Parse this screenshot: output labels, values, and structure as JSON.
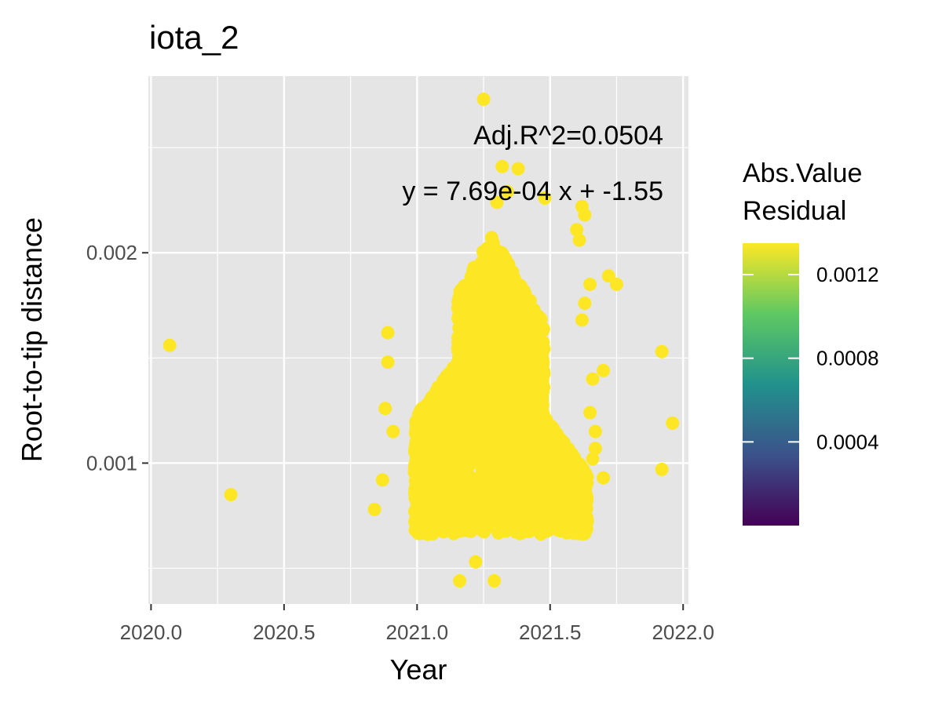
{
  "chart_data": {
    "type": "scatter",
    "title": "iota_2",
    "xlabel": "Year",
    "ylabel": "Root-to-tip distance",
    "xlim": [
      2019.99,
      2022.02
    ],
    "ylim": [
      0.00033,
      0.00284
    ],
    "x_ticks": [
      {
        "value": 2020.0,
        "label": "2020.0"
      },
      {
        "value": 2020.5,
        "label": "2020.5"
      },
      {
        "value": 2021.0,
        "label": "2021.0"
      },
      {
        "value": 2021.5,
        "label": "2021.5"
      },
      {
        "value": 2022.0,
        "label": "2022.0"
      }
    ],
    "y_ticks": [
      {
        "value": 0.001,
        "label": "0.001"
      },
      {
        "value": 0.002,
        "label": "0.002"
      }
    ],
    "grid": true,
    "annotations": {
      "r2": "Adj.R^2=0.0504",
      "equation": "y = 7.69e-04 x + -1.55"
    },
    "regression": {
      "slope": 0.000769,
      "intercept": -1.55
    },
    "legend": {
      "title_line1": "Abs.Value",
      "title_line2": "Residual",
      "position": "right",
      "range": [
        0,
        0.00135
      ],
      "ticks": [
        {
          "value": 0.0012,
          "label": "0.0012"
        },
        {
          "value": 0.0008,
          "label": "0.0008"
        },
        {
          "value": 0.0004,
          "label": "0.0004"
        }
      ],
      "palette": [
        "#440154",
        "#3b528b",
        "#21918c",
        "#5ec962",
        "#fde725"
      ]
    },
    "cluster": {
      "x_range": [
        2020.99,
        2021.64
      ],
      "y_range": [
        0.00066,
        0.00208
      ],
      "note": "dense cloud of several thousand points"
    },
    "points": [
      {
        "x": 2020.07,
        "y": 0.00156
      },
      {
        "x": 2020.3,
        "y": 0.00085
      },
      {
        "x": 2020.84,
        "y": 0.00078
      },
      {
        "x": 2020.89,
        "y": 0.00162
      },
      {
        "x": 2020.89,
        "y": 0.00148
      },
      {
        "x": 2020.88,
        "y": 0.00126
      },
      {
        "x": 2020.91,
        "y": 0.00115
      },
      {
        "x": 2020.87,
        "y": 0.00092
      },
      {
        "x": 2021.16,
        "y": 0.00044
      },
      {
        "x": 2021.29,
        "y": 0.00044
      },
      {
        "x": 2021.22,
        "y": 0.00053
      },
      {
        "x": 2021.25,
        "y": 0.00273
      },
      {
        "x": 2021.32,
        "y": 0.00241
      },
      {
        "x": 2021.38,
        "y": 0.0024
      },
      {
        "x": 2021.34,
        "y": 0.00229
      },
      {
        "x": 2021.3,
        "y": 0.00224
      },
      {
        "x": 2021.48,
        "y": 0.00226
      },
      {
        "x": 2021.62,
        "y": 0.00222
      },
      {
        "x": 2021.63,
        "y": 0.00218
      },
      {
        "x": 2021.6,
        "y": 0.00211
      },
      {
        "x": 2021.61,
        "y": 0.00206
      },
      {
        "x": 2021.65,
        "y": 0.00185
      },
      {
        "x": 2021.72,
        "y": 0.00189
      },
      {
        "x": 2021.75,
        "y": 0.00185
      },
      {
        "x": 2021.63,
        "y": 0.00176
      },
      {
        "x": 2021.62,
        "y": 0.00168
      },
      {
        "x": 2021.7,
        "y": 0.00144
      },
      {
        "x": 2021.66,
        "y": 0.0014
      },
      {
        "x": 2021.65,
        "y": 0.00124
      },
      {
        "x": 2021.67,
        "y": 0.00115
      },
      {
        "x": 2021.67,
        "y": 0.00107
      },
      {
        "x": 2021.66,
        "y": 0.00102
      },
      {
        "x": 2021.7,
        "y": 0.00093
      },
      {
        "x": 2021.62,
        "y": 0.00089
      },
      {
        "x": 2021.61,
        "y": 0.00082
      },
      {
        "x": 2021.6,
        "y": 0.00074
      },
      {
        "x": 2021.58,
        "y": 0.00074
      },
      {
        "x": 2021.92,
        "y": 0.00153
      },
      {
        "x": 2021.96,
        "y": 0.00119
      },
      {
        "x": 2021.92,
        "y": 0.00097
      }
    ]
  }
}
